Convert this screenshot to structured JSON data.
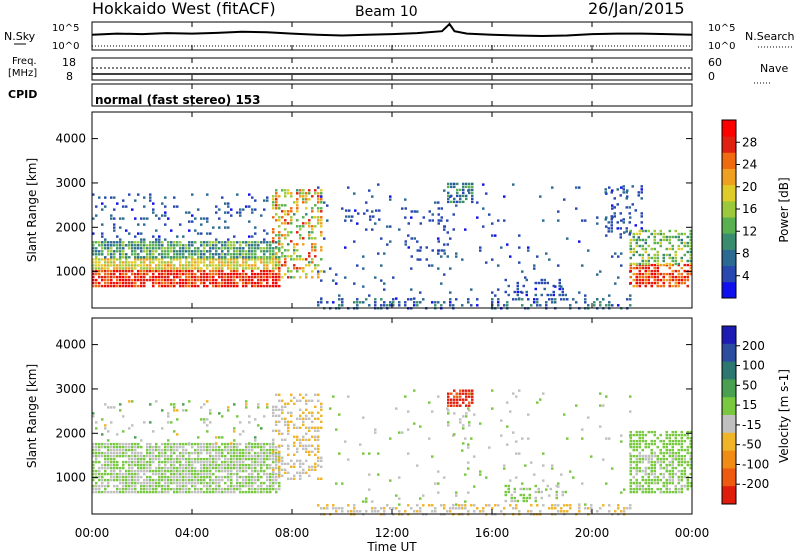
{
  "header": {
    "station": "Hokkaido West (fitACF)",
    "beam": "Beam 10",
    "date": "26/Jan/2015"
  },
  "status_panels": {
    "nsky_label": "N.Sky",
    "nsearch_label": "N.Search",
    "freq_label_line1": "Freq.",
    "freq_label_line2": "[MHz]",
    "nave_label": "Nave",
    "cpid_label": "CPID",
    "noise_ticks": [
      "10^5",
      "10^0"
    ],
    "freq_ticks": [
      "18",
      "8"
    ],
    "nave_ticks": [
      "60",
      "0"
    ],
    "cpid_text": "normal (fast stereo) 153"
  },
  "colors": {
    "power": [
      "#1010ee",
      "#2848b0",
      "#2c6a92",
      "#3a8c6e",
      "#58b050",
      "#9cc83c",
      "#e0cc28",
      "#f0a020",
      "#f06a10",
      "#e02010",
      "#ff0000"
    ],
    "velocity": [
      "#1c1cb4",
      "#2c4ca0",
      "#2c7870",
      "#48a050",
      "#78c840",
      "#c0c0c0",
      "#f0b428",
      "#f08c14",
      "#ee5a10",
      "#e01c0c"
    ],
    "noise_line": "#000000"
  },
  "axes": {
    "xlabel": "Time UT",
    "ylabel": "Slant Range [km]",
    "x_ticks": [
      "00:00",
      "04:00",
      "08:00",
      "12:00",
      "16:00",
      "20:00",
      "00:00"
    ],
    "y_ticks": [
      1000,
      2000,
      3000,
      4000
    ],
    "ylim": [
      180,
      4600
    ],
    "xlim_hours": [
      0,
      24
    ]
  },
  "chart_data": [
    {
      "type": "heatmap",
      "name": "power",
      "colorbar_label": "Power [dB]",
      "colorbar_ticks": [
        4,
        8,
        12,
        16,
        20,
        24,
        28
      ],
      "zlim": [
        0,
        30
      ],
      "regions": [
        {
          "t": [
            0.0,
            7.5
          ],
          "r": [
            700,
            1100
          ],
          "v": [
            22,
            30
          ]
        },
        {
          "t": [
            0.0,
            7.5
          ],
          "r": [
            1100,
            1350
          ],
          "v": [
            14,
            22
          ]
        },
        {
          "t": [
            0.0,
            7.5
          ],
          "r": [
            1350,
            1750
          ],
          "v": [
            6,
            16
          ]
        },
        {
          "t": [
            0.0,
            7.0
          ],
          "r": [
            1750,
            2800
          ],
          "v": [
            2,
            8
          ],
          "d": 0.15
        },
        {
          "t": [
            7.2,
            9.2
          ],
          "r": [
            900,
            2900
          ],
          "v": [
            10,
            26
          ],
          "d": 0.45
        },
        {
          "t": [
            9.0,
            21.5
          ],
          "r": [
            200,
            420
          ],
          "v": [
            2,
            10
          ],
          "d": 0.3
        },
        {
          "t": [
            9.0,
            21.5
          ],
          "r": [
            420,
            3000
          ],
          "v": [
            2,
            8
          ],
          "d": 0.04
        },
        {
          "t": [
            14.2,
            15.2
          ],
          "r": [
            2600,
            3050
          ],
          "v": [
            4,
            12
          ],
          "d": 0.7
        },
        {
          "t": [
            10.0,
            11.5
          ],
          "r": [
            2200,
            2450
          ],
          "v": [
            2,
            6
          ],
          "d": 0.3
        },
        {
          "t": [
            12.5,
            14.5
          ],
          "r": [
            1300,
            2500
          ],
          "v": [
            2,
            6
          ],
          "d": 0.1
        },
        {
          "t": [
            16.5,
            19.0
          ],
          "r": [
            500,
            900
          ],
          "v": [
            2,
            8
          ],
          "d": 0.25
        },
        {
          "t": [
            21.5,
            24.0
          ],
          "r": [
            700,
            1200
          ],
          "v": [
            20,
            30
          ],
          "d": 0.8
        },
        {
          "t": [
            21.5,
            24.0
          ],
          "r": [
            1200,
            2000
          ],
          "v": [
            8,
            18
          ],
          "d": 0.5
        },
        {
          "t": [
            20.5,
            22.0
          ],
          "r": [
            1800,
            3000
          ],
          "v": [
            2,
            8
          ],
          "d": 0.2
        }
      ]
    },
    {
      "type": "heatmap",
      "name": "velocity",
      "colorbar_label": "Velocity [m s-1]",
      "colorbar_ticks": [
        200,
        100,
        50,
        15,
        -15,
        -50,
        -100,
        -200
      ],
      "zlim": [
        -250,
        250
      ],
      "regions": [
        {
          "t": [
            0.0,
            7.5
          ],
          "r": [
            700,
            1800
          ],
          "v": [
            -15,
            15
          ]
        },
        {
          "t": [
            0.0,
            7.0
          ],
          "r": [
            1800,
            2800
          ],
          "v": [
            -60,
            60
          ],
          "d": 0.1
        },
        {
          "t": [
            7.2,
            9.2
          ],
          "r": [
            1000,
            2900
          ],
          "v": [
            -80,
            -10
          ],
          "d": 0.4
        },
        {
          "t": [
            9.0,
            21.5
          ],
          "r": [
            200,
            420
          ],
          "v": [
            -80,
            -20
          ],
          "d": 0.35
        },
        {
          "t": [
            9.0,
            21.5
          ],
          "r": [
            420,
            3000
          ],
          "v": [
            -50,
            50
          ],
          "d": 0.04
        },
        {
          "t": [
            14.2,
            15.2
          ],
          "r": [
            2650,
            3050
          ],
          "v": [
            -250,
            -180
          ],
          "d": 0.85
        },
        {
          "t": [
            14.2,
            15.2
          ],
          "r": [
            1800,
            2600
          ],
          "v": [
            -30,
            30
          ],
          "d": 0.15
        },
        {
          "t": [
            16.5,
            19.0
          ],
          "r": [
            500,
            900
          ],
          "v": [
            -30,
            40
          ],
          "d": 0.3
        },
        {
          "t": [
            21.5,
            24.0
          ],
          "r": [
            700,
            2100
          ],
          "v": [
            15,
            40
          ],
          "d": 0.6
        },
        {
          "t": [
            21.5,
            24.0
          ],
          "r": [
            700,
            1600
          ],
          "v": [
            -15,
            15
          ],
          "d": 0.4
        }
      ]
    }
  ],
  "noise_series": {
    "x": [
      0,
      1,
      2,
      3,
      4,
      5,
      6,
      7,
      8,
      9,
      10,
      11,
      12,
      13,
      14,
      14.3,
      14.5,
      15,
      16,
      17,
      18,
      19,
      20,
      21,
      22,
      23,
      24
    ],
    "values": [
      0.55,
      0.6,
      0.58,
      0.62,
      0.6,
      0.63,
      0.68,
      0.66,
      0.6,
      0.55,
      0.52,
      0.55,
      0.58,
      0.62,
      0.7,
      1.0,
      0.7,
      0.6,
      0.55,
      0.52,
      0.5,
      0.52,
      0.58,
      0.6,
      0.6,
      0.58,
      0.55
    ]
  }
}
